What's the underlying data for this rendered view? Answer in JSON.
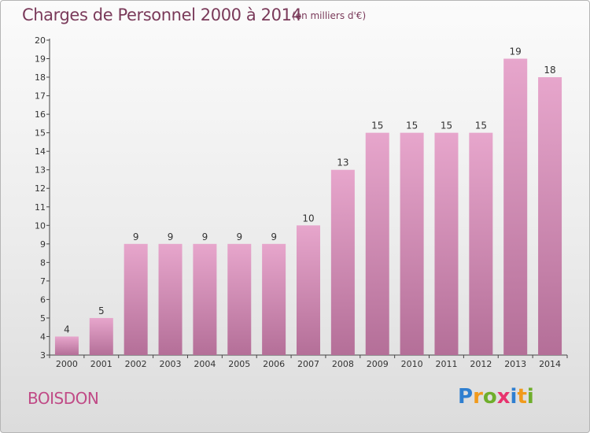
{
  "title": "Charges de Personnel 2000 à 2014",
  "subtitle": "(en milliers d'€)",
  "commune": "BOISDON",
  "logo": {
    "text": "Proxiti",
    "letters": [
      {
        "ch": "P",
        "color": "#2f7fd0"
      },
      {
        "ch": "r",
        "color": "#f19a1c"
      },
      {
        "ch": "o",
        "color": "#6fae2b"
      },
      {
        "ch": "x",
        "color": "#e8336e"
      },
      {
        "ch": "i",
        "color": "#2f7fd0"
      },
      {
        "ch": "t",
        "color": "#f19a1c"
      },
      {
        "ch": "i",
        "color": "#6fae2b"
      }
    ]
  },
  "colors": {
    "bar_top": "#e7a6cc",
    "bar_bottom": "#b46f98",
    "title": "#7a3a5a",
    "commune": "#c04a86"
  },
  "chart_data": {
    "type": "bar",
    "title": "Charges de Personnel 2000 à 2014",
    "subtitle": "(en milliers d'€)",
    "categories": [
      "2000",
      "2001",
      "2002",
      "2003",
      "2004",
      "2005",
      "2006",
      "2007",
      "2008",
      "2009",
      "2010",
      "2011",
      "2012",
      "2013",
      "2014"
    ],
    "values": [
      4,
      5,
      9,
      9,
      9,
      9,
      9,
      10,
      13,
      15,
      15,
      15,
      15,
      19,
      18
    ],
    "ylim": [
      3,
      20
    ],
    "yticks": [
      3,
      4,
      5,
      6,
      7,
      8,
      9,
      10,
      11,
      12,
      13,
      14,
      15,
      16,
      17,
      18,
      19,
      20
    ],
    "xlabel": "",
    "ylabel": "",
    "grid": false,
    "data_labels": true
  }
}
